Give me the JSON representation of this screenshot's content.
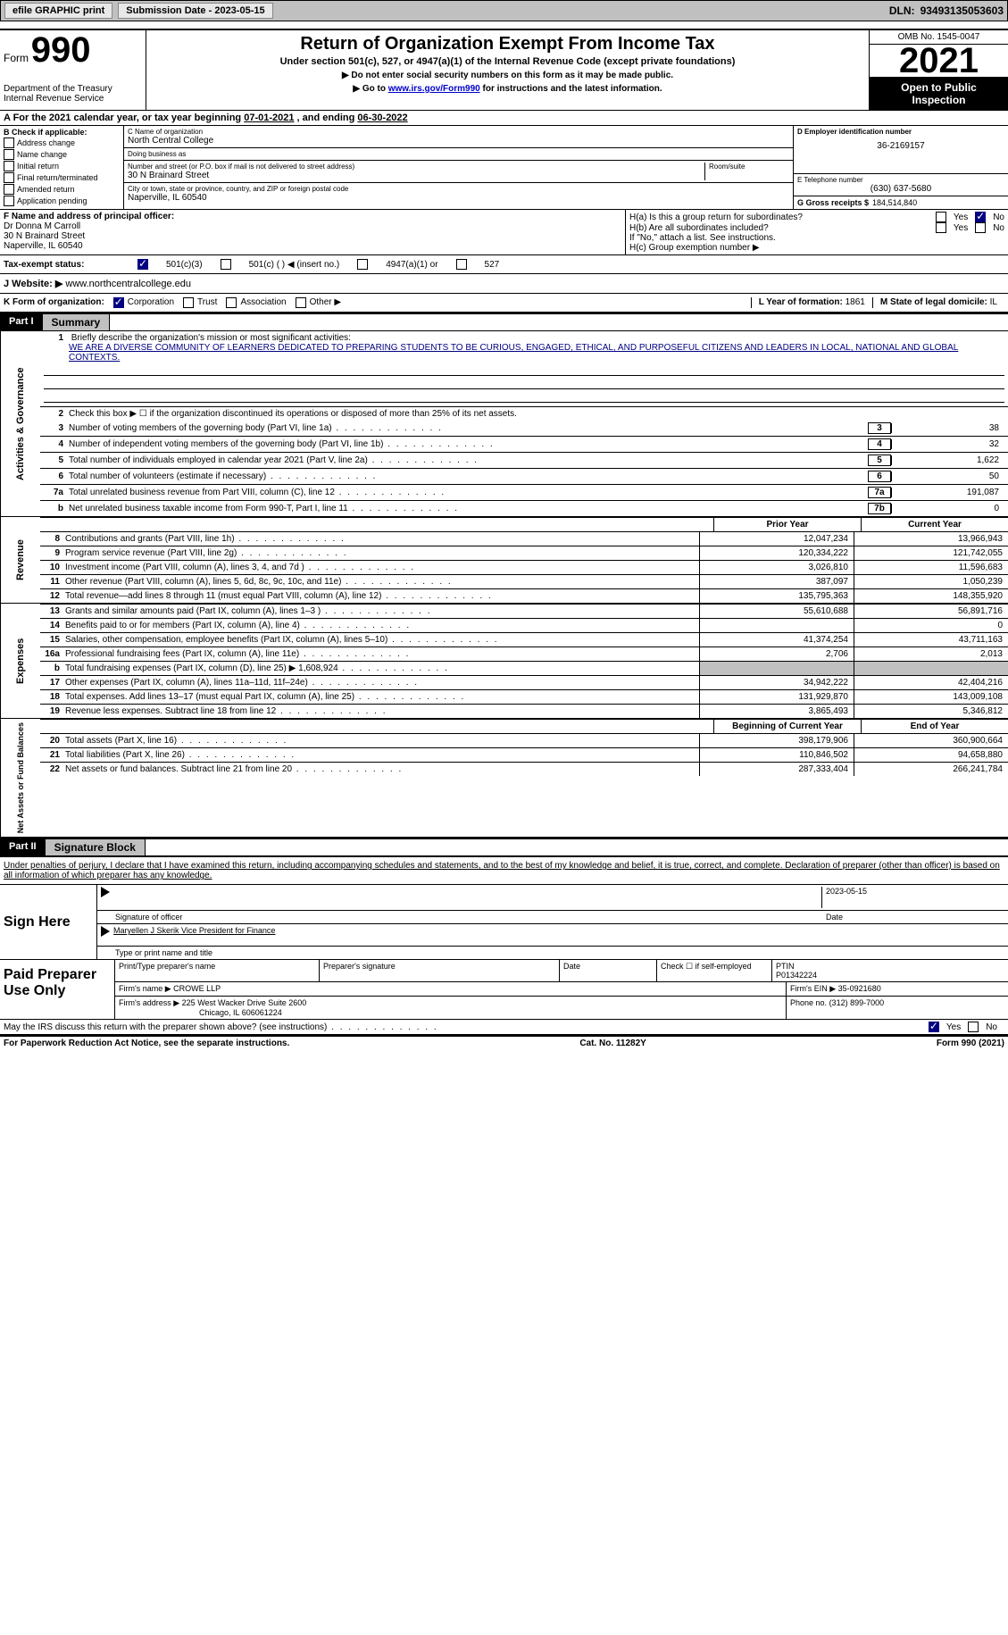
{
  "topbar": {
    "efile": "efile GRAPHIC print",
    "submission_label": "Submission Date -",
    "submission_date": "2023-05-15",
    "dln_label": "DLN:",
    "dln": "93493135053603"
  },
  "header": {
    "form_label": "Form",
    "form_num": "990",
    "dept": "Department of the Treasury\nInternal Revenue Service",
    "main_title": "Return of Organization Exempt From Income Tax",
    "subtitle": "Under section 501(c), 527, or 4947(a)(1) of the Internal Revenue Code (except private foundations)",
    "instr1": "▶ Do not enter social security numbers on this form as it may be made public.",
    "instr2_pre": "▶ Go to ",
    "instr2_link": "www.irs.gov/Form990",
    "instr2_post": " for instructions and the latest information.",
    "omb": "OMB No. 1545-0047",
    "year": "2021",
    "open_public": "Open to Public Inspection"
  },
  "section_a": {
    "label": "A For the 2021 calendar year, or tax year beginning ",
    "begin": "07-01-2021",
    "mid": " , and ending ",
    "end": "06-30-2022"
  },
  "section_b": {
    "label": "B Check if applicable:",
    "opts": [
      "Address change",
      "Name change",
      "Initial return",
      "Final return/terminated",
      "Amended return",
      "Application pending"
    ]
  },
  "section_c": {
    "name_label": "C Name of organization",
    "name": "North Central College",
    "dba_label": "Doing business as",
    "dba": "",
    "addr_label": "Number and street (or P.O. box if mail is not delivered to street address)",
    "addr": "30 N Brainard Street",
    "room_label": "Room/suite",
    "city_label": "City or town, state or province, country, and ZIP or foreign postal code",
    "city": "Naperville, IL  60540"
  },
  "section_d": {
    "label": "D Employer identification number",
    "ein": "36-2169157"
  },
  "section_e": {
    "label": "E Telephone number",
    "phone": "(630) 637-5680"
  },
  "section_g": {
    "label": "G Gross receipts $",
    "amount": "184,514,840"
  },
  "section_f": {
    "label": "F Name and address of principal officer:",
    "name": "Dr Donna M Carroll",
    "addr": "30 N Brainard Street",
    "city": "Naperville, IL  60540"
  },
  "section_h": {
    "ha": "H(a)  Is this a group return for subordinates?",
    "hb": "H(b)  Are all subordinates included?",
    "hb_note": "If \"No,\" attach a list. See instructions.",
    "hc": "H(c)  Group exemption number ▶",
    "ha_answer_no": true
  },
  "tax_status": {
    "label": "Tax-exempt status:",
    "c3_checked": true,
    "opts": [
      "501(c)(3)",
      "501(c) (  ) ◀ (insert no.)",
      "4947(a)(1) or",
      "527"
    ]
  },
  "section_j": {
    "label": "J Website: ▶",
    "url": "www.northcentralcollege.edu"
  },
  "section_k": {
    "label": "K Form of organization:",
    "corp_checked": true,
    "opts": [
      "Corporation",
      "Trust",
      "Association",
      "Other ▶"
    ]
  },
  "section_l": {
    "label": "L Year of formation:",
    "val": "1861"
  },
  "section_m": {
    "label": "M State of legal domicile:",
    "val": "IL"
  },
  "part1": {
    "header": "Part I",
    "title": "Summary",
    "mission_label": "Briefly describe the organization's mission or most significant activities:",
    "mission": "WE ARE A DIVERSE COMMUNITY OF LEARNERS DEDICATED TO PREPARING STUDENTS TO BE CURIOUS, ENGAGED, ETHICAL, AND PURPOSEFUL CITIZENS AND LEADERS IN LOCAL, NATIONAL AND GLOBAL CONTEXTS.",
    "line2": "Check this box ▶ ☐  if the organization discontinued its operations or disposed of more than 25% of its net assets.",
    "lines": [
      {
        "n": "3",
        "desc": "Number of voting members of the governing body (Part VI, line 1a)",
        "box": "3",
        "val": "38"
      },
      {
        "n": "4",
        "desc": "Number of independent voting members of the governing body (Part VI, line 1b)",
        "box": "4",
        "val": "32"
      },
      {
        "n": "5",
        "desc": "Total number of individuals employed in calendar year 2021 (Part V, line 2a)",
        "box": "5",
        "val": "1,622"
      },
      {
        "n": "6",
        "desc": "Total number of volunteers (estimate if necessary)",
        "box": "6",
        "val": "50"
      },
      {
        "n": "7a",
        "desc": "Total unrelated business revenue from Part VIII, column (C), line 12",
        "box": "7a",
        "val": "191,087"
      },
      {
        "n": "b",
        "desc": "Net unrelated business taxable income from Form 990-T, Part I, line 11",
        "box": "7b",
        "val": "0"
      }
    ],
    "prior_year_label": "Prior Year",
    "current_year_label": "Current Year",
    "revenue": [
      {
        "n": "8",
        "desc": "Contributions and grants (Part VIII, line 1h)",
        "prev": "12,047,234",
        "curr": "13,966,943"
      },
      {
        "n": "9",
        "desc": "Program service revenue (Part VIII, line 2g)",
        "prev": "120,334,222",
        "curr": "121,742,055"
      },
      {
        "n": "10",
        "desc": "Investment income (Part VIII, column (A), lines 3, 4, and 7d )",
        "prev": "3,026,810",
        "curr": "11,596,683"
      },
      {
        "n": "11",
        "desc": "Other revenue (Part VIII, column (A), lines 5, 6d, 8c, 9c, 10c, and 11e)",
        "prev": "387,097",
        "curr": "1,050,239"
      },
      {
        "n": "12",
        "desc": "Total revenue—add lines 8 through 11 (must equal Part VIII, column (A), line 12)",
        "prev": "135,795,363",
        "curr": "148,355,920"
      }
    ],
    "expenses": [
      {
        "n": "13",
        "desc": "Grants and similar amounts paid (Part IX, column (A), lines 1–3 )",
        "prev": "55,610,688",
        "curr": "56,891,716"
      },
      {
        "n": "14",
        "desc": "Benefits paid to or for members (Part IX, column (A), line 4)",
        "prev": "",
        "curr": "0"
      },
      {
        "n": "15",
        "desc": "Salaries, other compensation, employee benefits (Part IX, column (A), lines 5–10)",
        "prev": "41,374,254",
        "curr": "43,711,163"
      },
      {
        "n": "16a",
        "desc": "Professional fundraising fees (Part IX, column (A), line 11e)",
        "prev": "2,706",
        "curr": "2,013"
      },
      {
        "n": "b",
        "desc": "Total fundraising expenses (Part IX, column (D), line 25) ▶ 1,608,924",
        "prev": "SHADED",
        "curr": "SHADED"
      },
      {
        "n": "17",
        "desc": "Other expenses (Part IX, column (A), lines 11a–11d, 11f–24e)",
        "prev": "34,942,222",
        "curr": "42,404,216"
      },
      {
        "n": "18",
        "desc": "Total expenses. Add lines 13–17 (must equal Part IX, column (A), line 25)",
        "prev": "131,929,870",
        "curr": "143,009,108"
      },
      {
        "n": "19",
        "desc": "Revenue less expenses. Subtract line 18 from line 12",
        "prev": "3,865,493",
        "curr": "5,346,812"
      }
    ],
    "begin_year_label": "Beginning of Current Year",
    "end_year_label": "End of Year",
    "netassets": [
      {
        "n": "20",
        "desc": "Total assets (Part X, line 16)",
        "prev": "398,179,906",
        "curr": "360,900,664"
      },
      {
        "n": "21",
        "desc": "Total liabilities (Part X, line 26)",
        "prev": "110,846,502",
        "curr": "94,658,880"
      },
      {
        "n": "22",
        "desc": "Net assets or fund balances. Subtract line 21 from line 20",
        "prev": "287,333,404",
        "curr": "266,241,784"
      }
    ],
    "rail_gov": "Activities & Governance",
    "rail_rev": "Revenue",
    "rail_exp": "Expenses",
    "rail_net": "Net Assets or Fund Balances"
  },
  "part2": {
    "header": "Part II",
    "title": "Signature Block",
    "perjury": "Under penalties of perjury, I declare that I have examined this return, including accompanying schedules and statements, and to the best of my knowledge and belief, it is true, correct, and complete. Declaration of preparer (other than officer) is based on all information of which preparer has any knowledge.",
    "sign_here": "Sign Here",
    "sig_officer": "Signature of officer",
    "sig_date": "2023-05-15",
    "date_label": "Date",
    "officer_name": "Maryellen J Skerik  Vice President for Finance",
    "type_name_label": "Type or print name and title",
    "paid_prep": "Paid Preparer Use Only",
    "prep_name_label": "Print/Type preparer's name",
    "prep_sig_label": "Preparer's signature",
    "prep_date_label": "Date",
    "self_emp_label": "Check ☐ if self-employed",
    "ptin_label": "PTIN",
    "ptin": "P01342224",
    "firm_name_label": "Firm's name    ▶",
    "firm_name": "CROWE LLP",
    "firm_ein_label": "Firm's EIN ▶",
    "firm_ein": "35-0921680",
    "firm_addr_label": "Firm's address ▶",
    "firm_addr": "225 West Wacker Drive Suite 2600",
    "firm_city": "Chicago, IL  606061224",
    "firm_phone_label": "Phone no.",
    "firm_phone": "(312) 899-7000",
    "discuss": "May the IRS discuss this return with the preparer shown above? (see instructions)",
    "discuss_yes": true
  },
  "footer": {
    "paperwork": "For Paperwork Reduction Act Notice, see the separate instructions.",
    "cat": "Cat. No. 11282Y",
    "form": "Form 990 (2021)"
  }
}
